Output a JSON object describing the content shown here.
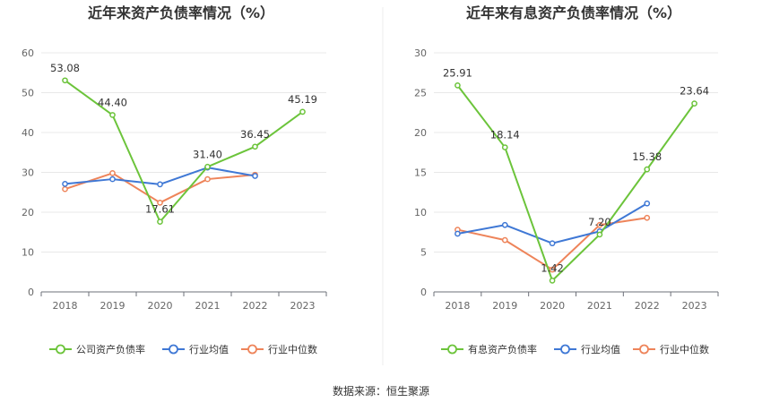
{
  "source": "数据来源：恒生聚源",
  "chart_data": [
    {
      "type": "line",
      "title": "近年来资产负债率情况（%）",
      "categories": [
        "2018",
        "2019",
        "2020",
        "2021",
        "2022",
        "2023"
      ],
      "ylim": [
        0,
        60
      ],
      "yticks": [
        0,
        10,
        20,
        30,
        40,
        50,
        60
      ],
      "grid": true,
      "legend_position": "bottom",
      "series": [
        {
          "name": "公司资产负债率",
          "color": "#6cc43b",
          "values": [
            53.08,
            44.4,
            17.61,
            31.4,
            36.45,
            45.19
          ],
          "labels": [
            "53.08",
            "44.40",
            "17.61",
            "31.40",
            "36.45",
            "45.19"
          ]
        },
        {
          "name": "行业均值",
          "color": "#3f78d5",
          "values": [
            27.1,
            28.3,
            27.0,
            31.2,
            29.1,
            null
          ],
          "labels": []
        },
        {
          "name": "行业中位数",
          "color": "#ee845a",
          "values": [
            25.8,
            29.8,
            22.4,
            28.3,
            29.4,
            null
          ],
          "labels": []
        }
      ]
    },
    {
      "type": "line",
      "title": "近年来有息资产负债率情况（%）",
      "categories": [
        "2018",
        "2019",
        "2020",
        "2021",
        "2022",
        "2023"
      ],
      "ylim": [
        0,
        30
      ],
      "yticks": [
        0,
        5,
        10,
        15,
        20,
        25,
        30
      ],
      "grid": true,
      "legend_position": "bottom",
      "series": [
        {
          "name": "有息资产负债率",
          "color": "#6cc43b",
          "values": [
            25.91,
            18.14,
            1.42,
            7.2,
            15.38,
            23.64
          ],
          "labels": [
            "25.91",
            "18.14",
            "1.42",
            "7.20",
            "15.38",
            "23.64"
          ]
        },
        {
          "name": "行业均值",
          "color": "#3f78d5",
          "values": [
            7.3,
            8.4,
            6.1,
            7.6,
            11.1,
            null
          ],
          "labels": []
        },
        {
          "name": "行业中位数",
          "color": "#ee845a",
          "values": [
            7.8,
            6.5,
            2.8,
            8.4,
            9.3,
            null
          ],
          "labels": []
        }
      ]
    }
  ]
}
